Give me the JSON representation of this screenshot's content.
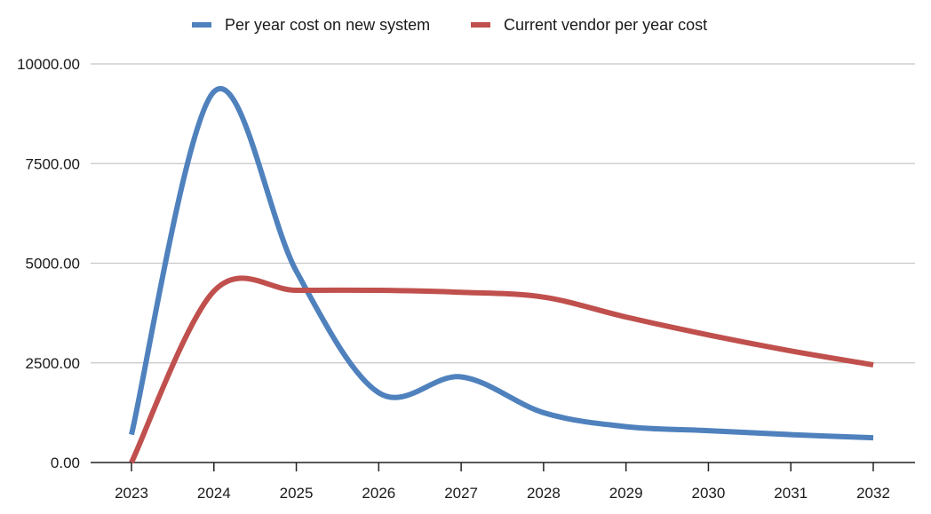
{
  "chart_data": {
    "type": "line",
    "smoothed": true,
    "title": "",
    "xlabel": "",
    "ylabel": "",
    "categories": [
      "2023",
      "2024",
      "2025",
      "2026",
      "2027",
      "2028",
      "2029",
      "2030",
      "2031",
      "2032"
    ],
    "ylim": [
      0,
      10000
    ],
    "yticks": [
      "0.00",
      "2500.00",
      "5000.00",
      "7500.00",
      "10000.00"
    ],
    "grid": "horizontal",
    "legend": "top-center",
    "series": [
      {
        "name": "Per year cost on new system",
        "color": "#4f81bd",
        "values": [
          700,
          9300,
          4800,
          1750,
          2150,
          1250,
          900,
          800,
          700,
          620
        ]
      },
      {
        "name": "Current vendor per year cost",
        "color": "#c0504d",
        "values": [
          0,
          4300,
          4320,
          4320,
          4270,
          4150,
          3650,
          3200,
          2800,
          2450
        ]
      }
    ]
  }
}
